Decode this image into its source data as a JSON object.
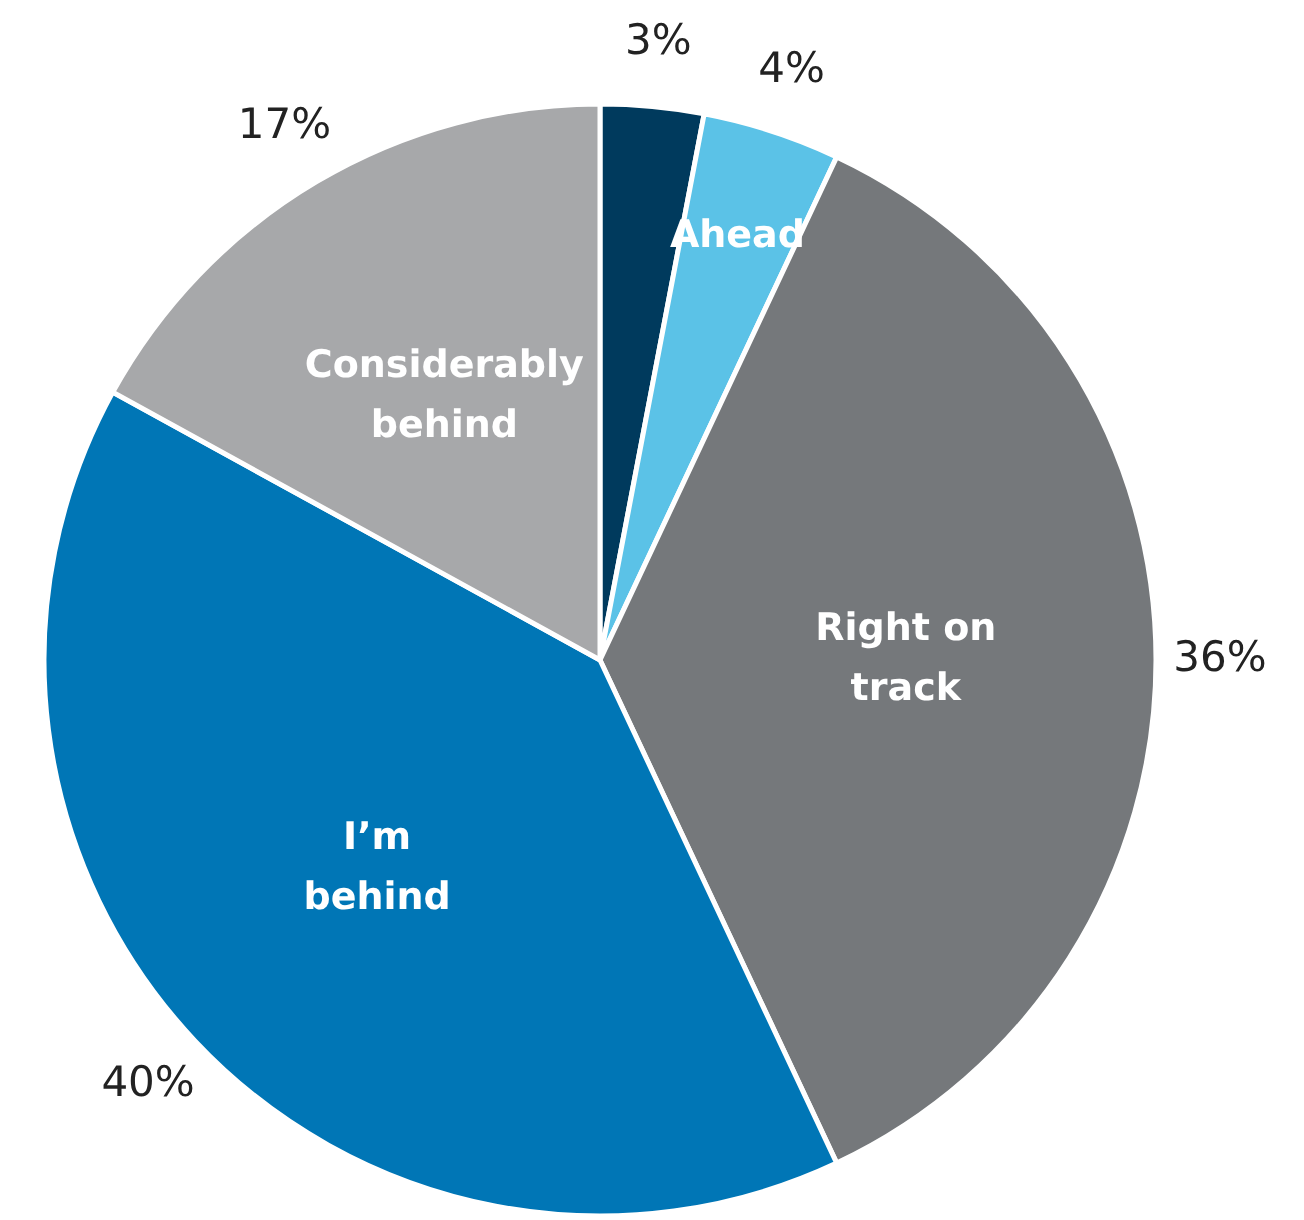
{
  "chart_data": {
    "type": "pie",
    "categories": [
      null,
      "Ahead",
      "Right on track",
      "I’m behind",
      "Considerably behind"
    ],
    "values": [
      3,
      4,
      36,
      40,
      17
    ],
    "value_labels": [
      "3%",
      "4%",
      "36%",
      "40%",
      "17%"
    ],
    "colors": [
      "#003a5d",
      "#5bc2e7",
      "#75787b",
      "#0076b6",
      "#a7a8aa"
    ]
  }
}
